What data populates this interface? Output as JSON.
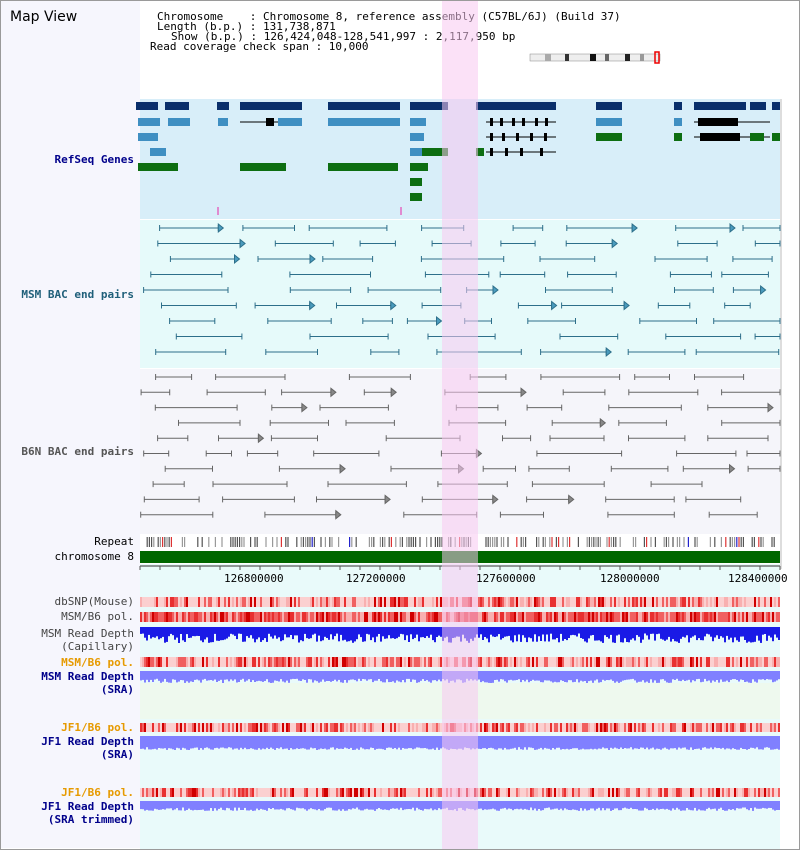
{
  "title": "Map View",
  "info": {
    "line1": "Chromosome    : Chromosome 8, reference assembly (C57BL/6J) (Build 37)",
    "line2": "Length (b.p.) : 131,738,871",
    "line3": "Show (b.p.) : 126,424,048-128,541,997 : 2,117,950 bp",
    "line4": "Read coverage check span : 10,000"
  },
  "tracks": {
    "refseq": "RefSeq Genes",
    "msm_bac": "MSM BAC end pairs",
    "b6n_bac": "B6N BAC end pairs",
    "repeat": "Repeat",
    "chromosome": "chromosome 8",
    "dbsnp": "dbSNP(Mouse)",
    "msm_b6_pol": "MSM/B6 pol.",
    "msm_depth_cap_1": "MSM Read Depth",
    "msm_depth_cap_2": "(Capillary)",
    "msm_b6_pol2": "MSM/B6 pol.",
    "msm_depth_sra_1": "MSM Read Depth",
    "msm_depth_sra_2": "(SRA)",
    "jf1_b6_pol": "JF1/B6 pol.",
    "jf1_depth_sra_1": "JF1 Read Depth",
    "jf1_depth_sra_2": "(SRA)",
    "jf1_b6_pol2": "JF1/B6 pol.",
    "jf1_depth_trim_1": "JF1 Read Depth",
    "jf1_depth_trim_2": "(SRA trimmed)"
  },
  "axis_ticks": [
    "126800000",
    "127200000",
    "127600000",
    "128000000",
    "128400000"
  ],
  "colors": {
    "refseq_bg": "#d8eef9",
    "msm_bg": "#e6fafa",
    "highlight": "#f7d4f2",
    "gene_dark": "#0a2f6b",
    "gene_mid": "#3f8fc2",
    "gene_green": "#0d6e12",
    "chrom_green": "#006600",
    "depth_blue": "#1a1ae6",
    "depth_light": "#8080ff"
  }
}
